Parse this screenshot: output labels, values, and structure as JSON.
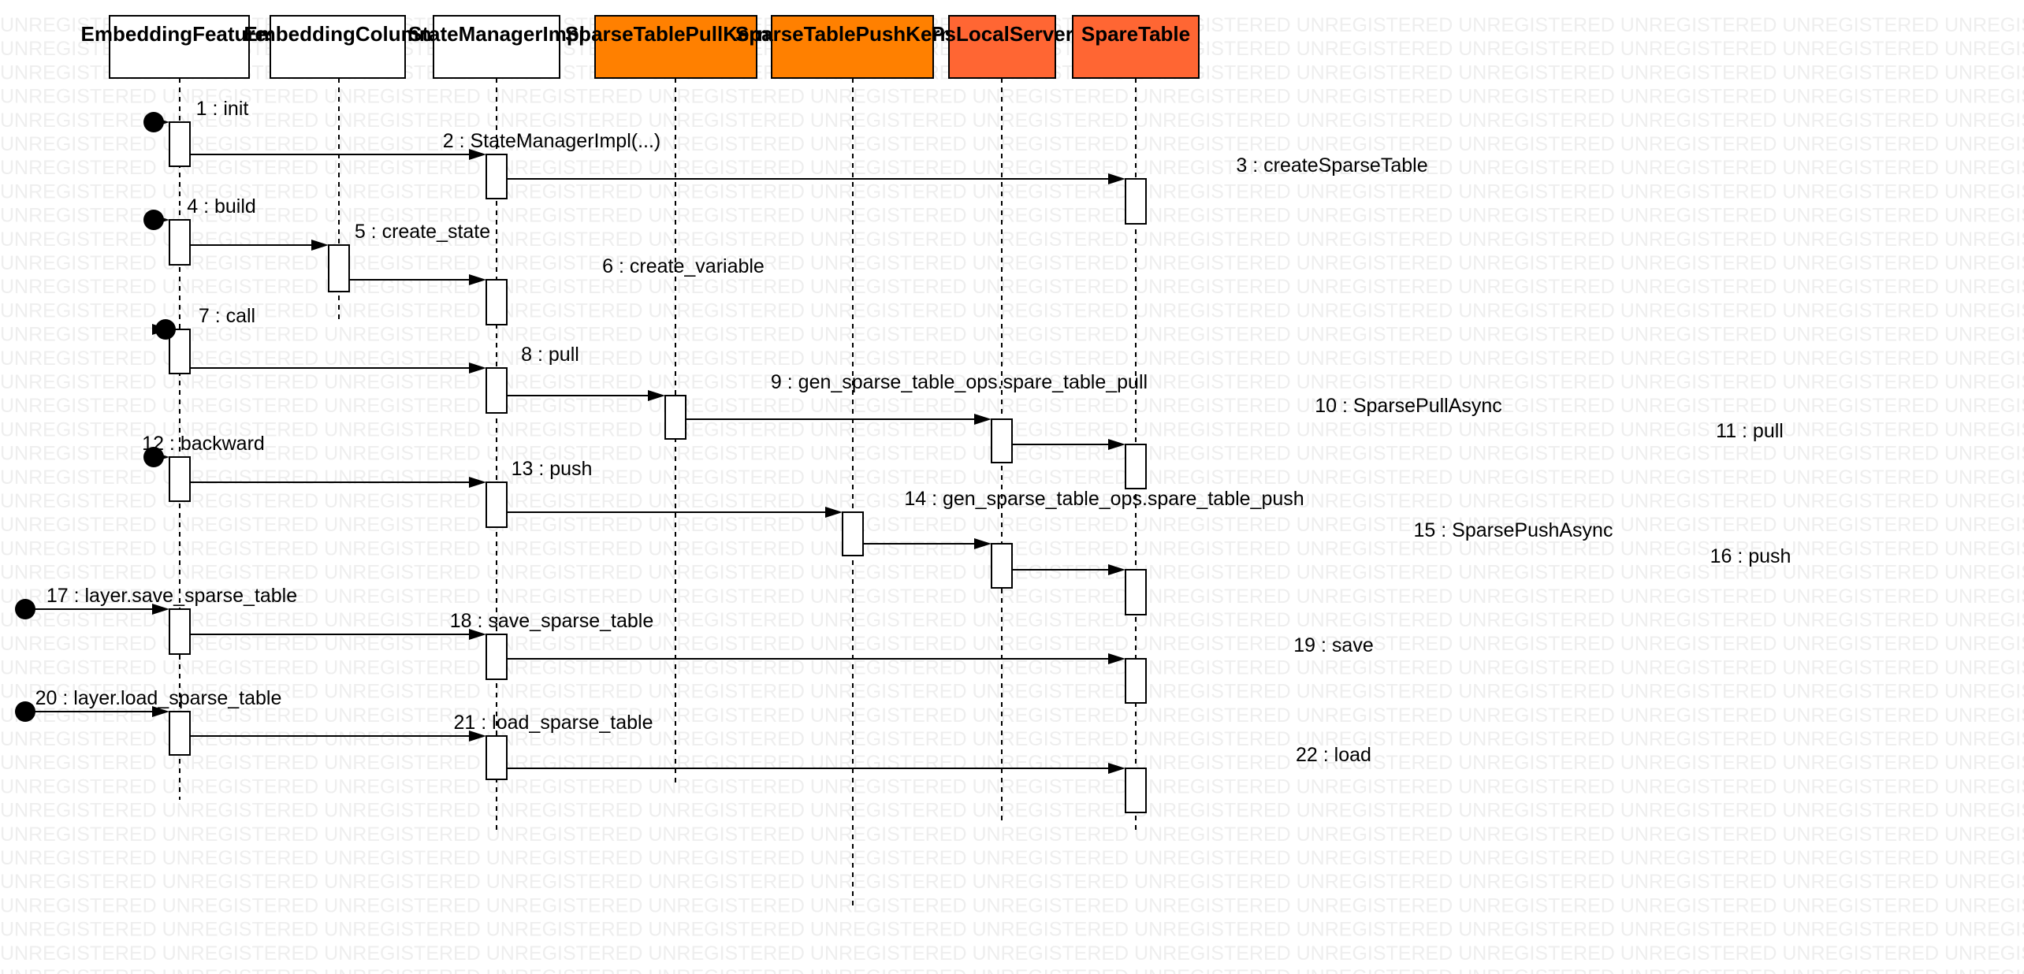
{
  "watermark": "UNREGISTERED",
  "colors": {
    "default_head": "#ffffff",
    "kernel_head": "#ff8000",
    "server_head": "#ff6633"
  },
  "lifelines": [
    {
      "id": "embedding-features",
      "label": "EmbeddingFeatures",
      "style": "default"
    },
    {
      "id": "embedding-column",
      "label": "EmbeddingColumn",
      "style": "default"
    },
    {
      "id": "state-manager-impl",
      "label": "StateManagerImpl",
      "style": "default"
    },
    {
      "id": "sparse-table-pull-kernel",
      "label": "SparseTablePullKernel",
      "style": "kernel"
    },
    {
      "id": "sparse-table-push-kernel",
      "label": "SparseTablePushKernel",
      "style": "kernel"
    },
    {
      "id": "ps-local-server",
      "label": "PsLocalServer",
      "style": "server"
    },
    {
      "id": "spare-table",
      "label": "SpareTable",
      "style": "server"
    }
  ],
  "messages": [
    {
      "label": "1 : init",
      "from": null,
      "to": 0
    },
    {
      "label": "2 : StateManagerImpl(...)",
      "from": 0,
      "to": 2
    },
    {
      "label": "3 : createSparseTable",
      "from": 2,
      "to": 6
    },
    {
      "label": "4 : build",
      "from": null,
      "to": 0
    },
    {
      "label": "5 : create_state",
      "from": 0,
      "to": 1
    },
    {
      "label": "6 : create_variable",
      "from": 1,
      "to": 2
    },
    {
      "label": "7 : call",
      "from": null,
      "to": 0
    },
    {
      "label": "8 : pull",
      "from": 0,
      "to": 2
    },
    {
      "label": "9 : gen_sparse_table_ops.spare_table_pull",
      "from": 2,
      "to": 3
    },
    {
      "label": "10 : SparsePullAsync",
      "from": 3,
      "to": 5
    },
    {
      "label": "11 : pull",
      "from": 5,
      "to": 6
    },
    {
      "label": "12 : backward",
      "from": null,
      "to": 0
    },
    {
      "label": "13 : push",
      "from": 0,
      "to": 2
    },
    {
      "label": "14 : gen_sparse_table_ops.spare_table_push",
      "from": 2,
      "to": 4
    },
    {
      "label": "15 : SparsePushAsync",
      "from": 4,
      "to": 5
    },
    {
      "label": "16 : push",
      "from": 5,
      "to": 6
    },
    {
      "label": "17 : layer.save_sparse_table",
      "from": null,
      "to": 0
    },
    {
      "label": "18 : save_sparse_table",
      "from": 0,
      "to": 2
    },
    {
      "label": "19 : save",
      "from": 2,
      "to": 6
    },
    {
      "label": "20 : layer.load_sparse_table",
      "from": null,
      "to": 0
    },
    {
      "label": "21 : load_sparse_table",
      "from": 0,
      "to": 2
    },
    {
      "label": "22 : load",
      "from": 2,
      "to": 6
    }
  ]
}
